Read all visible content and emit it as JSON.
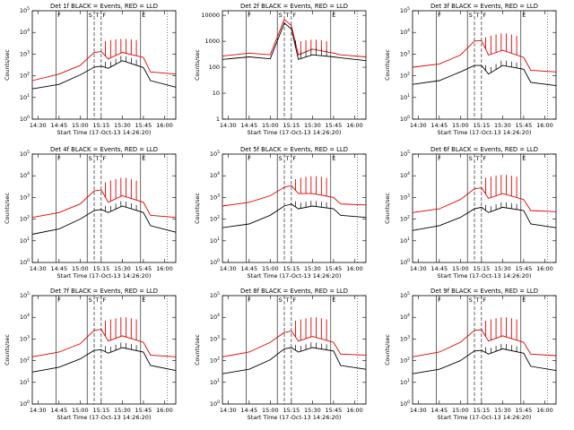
{
  "figure": {
    "x_tick_labels": [
      "14:30",
      "14:45",
      "15:00",
      "15:15",
      "15:30",
      "15:45",
      "16:00"
    ],
    "x_label": "Start Time (17-Oct-13 14:26:20)",
    "y_label": "Counts/sec",
    "series_colors": {
      "events": "#000000",
      "lld": "#e00000"
    },
    "marker_labels": {
      "first": "F",
      "second": "S",
      "third": "T",
      "fourth": "F",
      "fifth": "E"
    }
  },
  "chart_data": [
    {
      "type": "line",
      "title": "Det 1f BLACK = Events, RED = LLD",
      "xlabel": "Start Time (17-Oct-13 14:26:20)",
      "ylabel": "Counts/sec",
      "yscale": "log",
      "ylim": [
        1,
        100000
      ],
      "yticks": [
        "10^0",
        "10^1",
        "10^2",
        "10^3",
        "10^4",
        "10^5"
      ],
      "xlim": [
        "14:26",
        "16:08"
      ],
      "x": [
        "14:26",
        "14:45",
        "15:00",
        "15:10",
        "15:15",
        "15:20",
        "15:30",
        "15:45",
        "15:50",
        "16:08"
      ],
      "series": [
        {
          "values": [
            25,
            40,
            110,
            250,
            280,
            220,
            500,
            240,
            60,
            30
          ]
        },
        {
          "values": [
            60,
            120,
            300,
            1200,
            1300,
            600,
            1200,
            700,
            150,
            120
          ]
        }
      ],
      "spikes_lld_peak": [
        4000,
        4500,
        4800,
        5000,
        5000,
        4800,
        4500
      ]
    },
    {
      "type": "line",
      "title": "Det 2f BLACK = Events, RED = LLD",
      "xlabel": "Start Time (17-Oct-13 14:26:20)",
      "ylabel": "Counts/sec",
      "yscale": "log",
      "ylim": [
        1,
        15000
      ],
      "yticks": [
        "1",
        "10",
        "100",
        "1000",
        "10000"
      ],
      "xlim": [
        "14:26",
        "16:08"
      ],
      "x": [
        "14:26",
        "14:45",
        "15:00",
        "15:10",
        "15:15",
        "15:20",
        "15:30",
        "15:45",
        "15:50",
        "16:08"
      ],
      "series": [
        {
          "values": [
            200,
            250,
            210,
            5000,
            3000,
            200,
            300,
            250,
            230,
            180
          ]
        },
        {
          "values": [
            270,
            350,
            300,
            7000,
            4000,
            300,
            500,
            350,
            300,
            250
          ]
        }
      ],
      "spikes_lld_peak": [
        900,
        1000,
        1100,
        1150,
        1150,
        1100,
        1000
      ]
    },
    {
      "type": "line",
      "title": "Det 3f BLACK = Events, RED = LLD",
      "xlabel": "Start Time (17-Oct-13 14:26:20)",
      "ylabel": "Counts/sec",
      "yscale": "log",
      "ylim": [
        1,
        100000
      ],
      "yticks": [
        "10^0",
        "10^1",
        "10^2",
        "10^3",
        "10^4",
        "10^5"
      ],
      "xlim": [
        "14:26",
        "16:08"
      ],
      "x": [
        "14:26",
        "14:45",
        "15:00",
        "15:10",
        "15:15",
        "15:20",
        "15:30",
        "15:45",
        "15:50",
        "16:08"
      ],
      "series": [
        {
          "values": [
            40,
            60,
            150,
            300,
            300,
            120,
            300,
            200,
            50,
            35
          ]
        },
        {
          "values": [
            250,
            350,
            900,
            4000,
            4200,
            900,
            1500,
            700,
            180,
            150
          ]
        }
      ],
      "spikes_lld_peak": [
        6000,
        7000,
        8000,
        9000,
        9000,
        8000,
        7000
      ]
    },
    {
      "type": "line",
      "title": "Det 4f BLACK = Events, RED = LLD",
      "xlabel": "Start Time (17-Oct-13 14:26:20)",
      "ylabel": "Counts/sec",
      "yscale": "log",
      "ylim": [
        1,
        100000
      ],
      "yticks": [
        "10^0",
        "10^1",
        "10^2",
        "10^3",
        "10^4",
        "10^5"
      ],
      "xlim": [
        "14:26",
        "16:08"
      ],
      "x": [
        "14:26",
        "14:45",
        "15:00",
        "15:10",
        "15:15",
        "15:20",
        "15:30",
        "15:45",
        "15:50",
        "16:08"
      ],
      "series": [
        {
          "values": [
            20,
            35,
            100,
            250,
            280,
            200,
            400,
            200,
            50,
            25
          ]
        },
        {
          "values": [
            120,
            200,
            500,
            2000,
            2200,
            600,
            1200,
            600,
            150,
            120
          ]
        }
      ],
      "spikes_lld_peak": [
        5000,
        6000,
        7000,
        8000,
        8000,
        7000,
        6000
      ]
    },
    {
      "type": "line",
      "title": "Det 5f BLACK = Events, RED = LLD",
      "xlabel": "Start Time (17-Oct-13 14:26:20)",
      "ylabel": "Counts/sec",
      "yscale": "log",
      "ylim": [
        1,
        100000
      ],
      "yticks": [
        "10^0",
        "10^1",
        "10^2",
        "10^3",
        "10^4",
        "10^5"
      ],
      "xlim": [
        "14:26",
        "16:08"
      ],
      "x": [
        "14:26",
        "14:45",
        "15:00",
        "15:10",
        "15:15",
        "15:20",
        "15:30",
        "15:45",
        "15:50",
        "16:08"
      ],
      "series": [
        {
          "values": [
            40,
            60,
            150,
            400,
            500,
            300,
            400,
            300,
            150,
            120
          ]
        },
        {
          "values": [
            400,
            600,
            1200,
            3000,
            3500,
            1500,
            1500,
            1000,
            500,
            450
          ]
        }
      ],
      "spikes_lld_peak": [
        7000,
        8000,
        9000,
        9500,
        9500,
        9000,
        8000
      ]
    },
    {
      "type": "line",
      "title": "Det 6f BLACK = Events, RED = LLD",
      "xlabel": "Start Time (17-Oct-13 14:26:20)",
      "ylabel": "Counts/sec",
      "yscale": "log",
      "ylim": [
        1,
        100000
      ],
      "yticks": [
        "10^0",
        "10^1",
        "10^2",
        "10^3",
        "10^4",
        "10^5"
      ],
      "xlim": [
        "14:26",
        "16:08"
      ],
      "x": [
        "14:26",
        "14:45",
        "15:00",
        "15:10",
        "15:15",
        "15:20",
        "15:30",
        "15:45",
        "15:50",
        "16:08"
      ],
      "series": [
        {
          "values": [
            30,
            50,
            120,
            300,
            350,
            200,
            350,
            250,
            60,
            40
          ]
        },
        {
          "values": [
            200,
            300,
            800,
            2500,
            2800,
            900,
            1500,
            800,
            250,
            220
          ]
        }
      ],
      "spikes_lld_peak": [
        8000,
        9000,
        10000,
        11000,
        11000,
        10000,
        9000
      ]
    },
    {
      "type": "line",
      "title": "Det 7f BLACK = Events, RED = LLD",
      "xlabel": "Start Time (17-Oct-13 14:26:20)",
      "ylabel": "Counts/sec",
      "yscale": "log",
      "ylim": [
        1,
        100000
      ],
      "yticks": [
        "10^0",
        "10^1",
        "10^2",
        "10^3",
        "10^4",
        "10^5"
      ],
      "xlim": [
        "14:26",
        "16:08"
      ],
      "x": [
        "14:26",
        "14:45",
        "15:00",
        "15:10",
        "15:15",
        "15:20",
        "15:30",
        "15:45",
        "15:50",
        "16:08"
      ],
      "series": [
        {
          "values": [
            30,
            50,
            120,
            300,
            320,
            220,
            400,
            250,
            60,
            35
          ]
        },
        {
          "values": [
            150,
            250,
            600,
            2500,
            2800,
            800,
            1400,
            700,
            180,
            150
          ]
        }
      ],
      "spikes_lld_peak": [
        7000,
        8000,
        9000,
        10000,
        10000,
        9000,
        8000
      ]
    },
    {
      "type": "line",
      "title": "Det 8f BLACK = Events, RED = LLD",
      "xlabel": "Start Time (17-Oct-13 14:26:20)",
      "ylabel": "Counts/sec",
      "yscale": "log",
      "ylim": [
        1,
        100000
      ],
      "yticks": [
        "10^0",
        "10^1",
        "10^2",
        "10^3",
        "10^4",
        "10^5"
      ],
      "xlim": [
        "14:26",
        "16:08"
      ],
      "x": [
        "14:26",
        "14:45",
        "15:00",
        "15:10",
        "15:15",
        "15:20",
        "15:30",
        "15:45",
        "15:50",
        "16:08"
      ],
      "series": [
        {
          "values": [
            25,
            40,
            110,
            350,
            400,
            250,
            400,
            280,
            60,
            40
          ]
        },
        {
          "values": [
            150,
            250,
            700,
            2000,
            2300,
            800,
            1300,
            700,
            200,
            180
          ]
        }
      ],
      "spikes_lld_peak": [
        7000,
        8000,
        9000,
        10000,
        10000,
        9000,
        8000
      ]
    },
    {
      "type": "line",
      "title": "Det 9f BLACK = Events, RED = LLD",
      "xlabel": "Start Time (17-Oct-13 14:26:20)",
      "ylabel": "Counts/sec",
      "yscale": "log",
      "ylim": [
        1,
        100000
      ],
      "yticks": [
        "10^0",
        "10^1",
        "10^2",
        "10^3",
        "10^4",
        "10^5"
      ],
      "xlim": [
        "14:26",
        "16:08"
      ],
      "x": [
        "14:26",
        "14:45",
        "15:00",
        "15:10",
        "15:15",
        "15:20",
        "15:30",
        "15:45",
        "15:50",
        "16:08"
      ],
      "series": [
        {
          "values": [
            25,
            40,
            100,
            280,
            300,
            200,
            350,
            220,
            55,
            35
          ]
        },
        {
          "values": [
            150,
            250,
            700,
            2500,
            2700,
            800,
            1400,
            700,
            200,
            170
          ]
        }
      ],
      "spikes_lld_peak": [
        7000,
        8000,
        9000,
        10000,
        10000,
        9000,
        8000
      ]
    }
  ]
}
